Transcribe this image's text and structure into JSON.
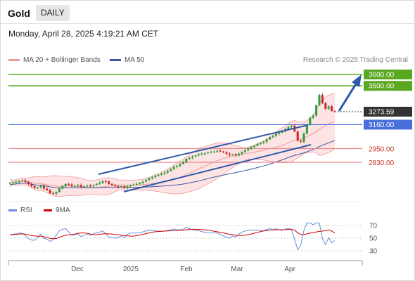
{
  "header": {
    "instrument": "Gold",
    "timeframe": "DAILY",
    "datetime": "Monday, April 28, 2025 4:19:21 AM CET"
  },
  "legend": {
    "bb_label": "MA 20 + Bollinger Bands",
    "ma50_label": "MA 50",
    "credit": "Research © 2025 Trading Central"
  },
  "rsi_legend": {
    "rsi_label": "RSI",
    "ma_label": "9MA"
  },
  "colors": {
    "bb": "#f19a9a",
    "band_fill": "#fde3e3",
    "ma50": "#3a5aa0",
    "up": "#2e9e3a",
    "down": "#c62828",
    "green_level": "#5aa820",
    "blue_level": "#4a6fdc",
    "red_level": "#e98a8a",
    "trend": "#2e58a8",
    "price_tag": "#333333",
    "rsi": "#6a8fdc",
    "rsi_ma": "#d00000"
  },
  "chart_data": [
    {
      "type": "candlestick",
      "x_labels": [
        "Dec",
        "2025",
        "Feb",
        "Mar",
        "Apr"
      ],
      "levels": [
        {
          "value": 3600.0,
          "label": "3600.00",
          "kind": "resistance"
        },
        {
          "value": 3500.0,
          "label": "3500.00",
          "kind": "resistance"
        },
        {
          "value": 3273.59,
          "label": "3273.59",
          "kind": "last_price"
        },
        {
          "value": 3160.0,
          "label": "3160.00",
          "kind": "pivot"
        },
        {
          "value": 2950.0,
          "label": "2950.00",
          "kind": "support"
        },
        {
          "value": 2830.0,
          "label": "2830.00",
          "kind": "support"
        }
      ],
      "close_series": [
        2650,
        2655,
        2660,
        2668,
        2672,
        2660,
        2640,
        2620,
        2605,
        2610,
        2625,
        2600,
        2585,
        2560,
        2555,
        2570,
        2600,
        2620,
        2640,
        2635,
        2620,
        2625,
        2630,
        2615,
        2620,
        2625,
        2620,
        2630,
        2640,
        2650,
        2665,
        2660,
        2640,
        2630,
        2620,
        2615,
        2620,
        2605,
        2620,
        2630,
        2635,
        2640,
        2650,
        2660,
        2675,
        2690,
        2700,
        2710,
        2720,
        2730,
        2740,
        2755,
        2770,
        2790,
        2800,
        2815,
        2830,
        2860,
        2870,
        2880,
        2890,
        2900,
        2905,
        2910,
        2915,
        2920,
        2925,
        2930,
        2925,
        2918,
        2905,
        2895,
        2900,
        2890,
        2905,
        2920,
        2935,
        2950,
        2965,
        2975,
        2990,
        3000,
        3010,
        3030,
        3050,
        3060,
        3080,
        3090,
        3100,
        3120,
        3140,
        3150,
        3100,
        3020,
        3010,
        3080,
        3160,
        3220,
        3240,
        3330,
        3420,
        3350,
        3300,
        3320,
        3280,
        3273.59
      ]
    },
    {
      "type": "line",
      "title": "RSI",
      "y_ticks": [
        70,
        50,
        30
      ],
      "series": [
        {
          "name": "RSI"
        },
        {
          "name": "9MA"
        }
      ]
    }
  ]
}
